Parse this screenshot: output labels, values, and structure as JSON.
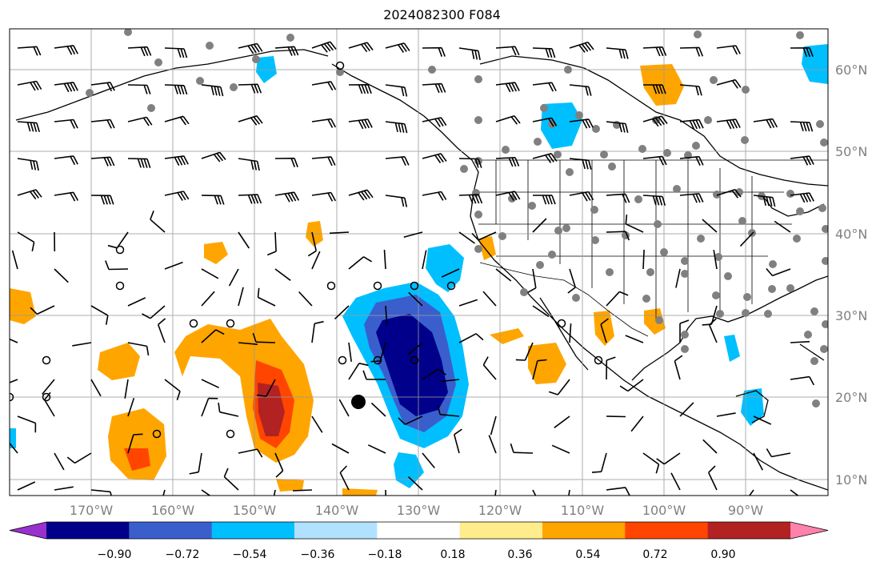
{
  "title": "2024082300 F084",
  "map": {
    "lon_labels": [
      "170°W",
      "160°W",
      "150°W",
      "140°W",
      "130°W",
      "120°W",
      "110°W",
      "100°W",
      "90°W"
    ],
    "lat_labels": [
      "60°N",
      "50°N",
      "40°N",
      "30°N",
      "20°N",
      "10°N"
    ],
    "grid": true
  },
  "colorbar": {
    "ticks": [
      "−0.90",
      "−0.72",
      "−0.54",
      "−0.36",
      "−0.18",
      "0.18",
      "0.36",
      "0.54",
      "0.72",
      "0.90"
    ],
    "colors": [
      "#9932cc",
      "#00008b",
      "#3a5fcd",
      "#00bfff",
      "#b0e2ff",
      "#ffffff",
      "#ffec8b",
      "#ffa500",
      "#ff4500",
      "#b22222",
      "#ff82ab"
    ]
  }
}
